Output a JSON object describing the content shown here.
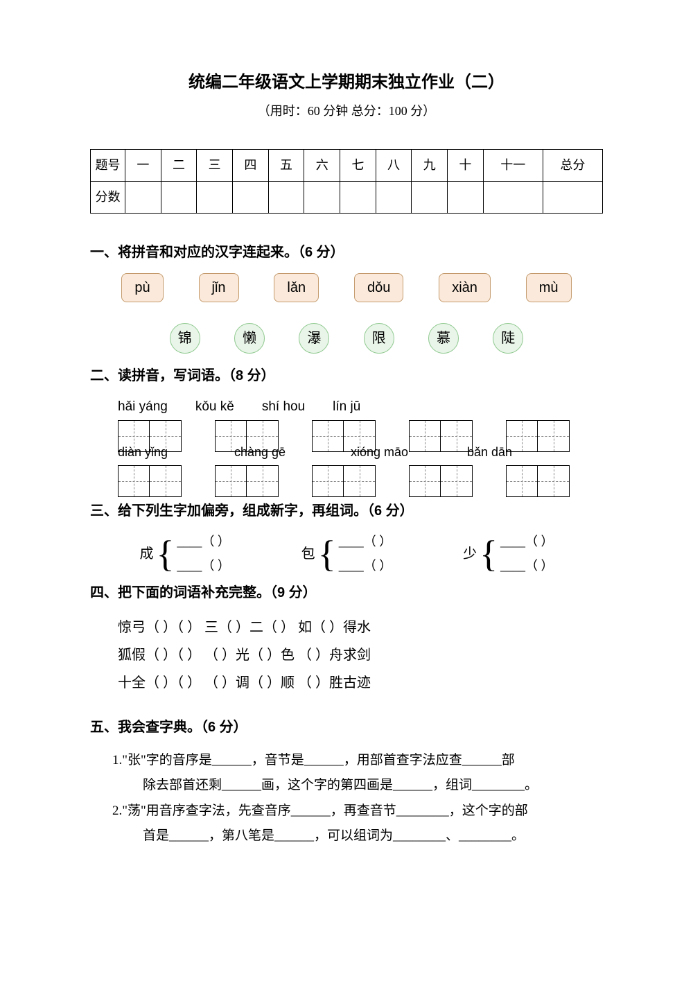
{
  "doc": {
    "title": "统编二年级语文上学期期末独立作业（二）",
    "subtitle": "（用时：60 分钟  总分：100 分）"
  },
  "scoreTable": {
    "rowLabels": [
      "题号",
      "分数"
    ],
    "cols": [
      "一",
      "二",
      "三",
      "四",
      "五",
      "六",
      "七",
      "八",
      "九",
      "十",
      "十一",
      "总分"
    ]
  },
  "q1": {
    "heading": "一、将拼音和对应的汉字连起来。（6 分）",
    "pinyin": [
      "pù",
      "jǐn",
      "lǎn",
      "dǒu",
      "xiàn",
      "mù"
    ],
    "hanzi": [
      "锦",
      "懒",
      "瀑",
      "限",
      "慕",
      "陡"
    ],
    "pinyinBox": {
      "bg": "#fbeadb",
      "border": "#c49a6c",
      "radius": 8
    },
    "hanziCircle": {
      "bg": "#e9f5e9",
      "border": "#8fc98f"
    }
  },
  "q2": {
    "heading": "二、读拼音，写词语。（8 分）",
    "row1": [
      "hǎi yáng",
      "kǒu kě",
      "shí  hou",
      "lín  jū"
    ],
    "row2": [
      "diàn yǐng",
      "chàng gē",
      "xióng māo",
      "bǎn dān"
    ]
  },
  "q3": {
    "heading": "三、给下列生字加偏旁，组成新字，再组词。（6 分）",
    "groups": [
      {
        "base": "成",
        "lines": [
          "____（   ）",
          "____（   ）"
        ]
      },
      {
        "base": "包",
        "lines": [
          "____（   ）",
          "____（   ）"
        ]
      },
      {
        "base": "少",
        "lines": [
          "____（   ）",
          "____（   ）"
        ]
      }
    ]
  },
  "q4": {
    "heading": "四、把下面的词语补充完整。（9 分）",
    "lines": [
      "惊弓（  ）（  ）    三（  ）二（  ）    如（  ）得水",
      "狐假（  ）（  ）   （  ）光（  ）色     （  ）舟求剑",
      "十全（  ）（  ）   （  ）调（  ）顺     （  ）胜古迹"
    ]
  },
  "q5": {
    "heading": "五、我会查字典。（6 分）",
    "item1a": "1.\"张\"字的音序是______，音节是______，用部首查字法应查______部",
    "item1b": "除去部首还剩______画，这个字的第四画是______，组词________。",
    "item2a": "2.\"荡\"用音序查字法，先查音序______，再查音节________，这个字的部",
    "item2b": "首是______，第八笔是______，可以组词为________、________。"
  },
  "colors": {
    "text": "#000000",
    "background": "#ffffff",
    "gridBorder": "#000000",
    "gridDash": "#888888"
  }
}
